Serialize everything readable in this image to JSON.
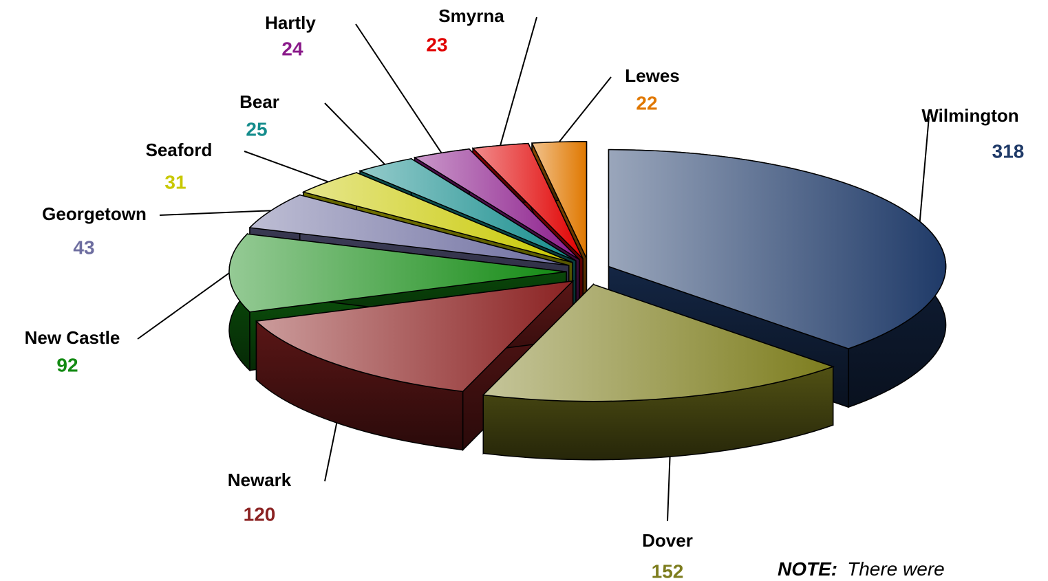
{
  "chart_data": {
    "type": "pie",
    "categories": [
      "Wilmington",
      "Dover",
      "Newark",
      "New Castle",
      "Georgetown",
      "Seaford",
      "Bear",
      "Hartly",
      "Smyrna",
      "Lewes"
    ],
    "values": [
      318,
      152,
      120,
      92,
      43,
      31,
      25,
      24,
      23,
      22
    ],
    "colors": [
      "#1f3a68",
      "#7d7d1e",
      "#8b2222",
      "#138a13",
      "#6e6ea0",
      "#c8c800",
      "#148c8c",
      "#8a1a8a",
      "#e00000",
      "#e07800"
    ],
    "annotation": {
      "label": "NOTE:",
      "text": "There were"
    }
  }
}
